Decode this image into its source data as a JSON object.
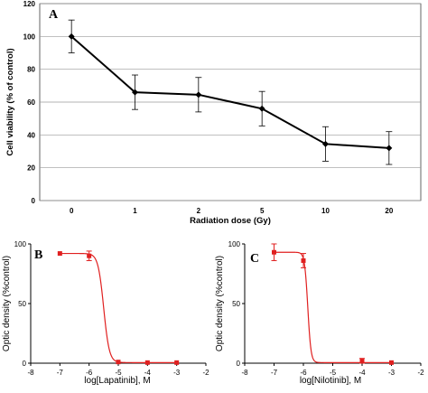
{
  "chart_data": [
    {
      "type": "line",
      "panel_label": "A",
      "xlabel": "Radiation dose (Gy)",
      "ylabel": "Cell viability (% of control)",
      "categories": [
        "0",
        "1",
        "2",
        "5",
        "10",
        "20"
      ],
      "values": [
        100,
        66,
        64.5,
        56,
        34.5,
        32
      ],
      "errors": [
        10,
        10.5,
        10.5,
        10.5,
        10.5,
        10
      ],
      "ylim": [
        0,
        120
      ],
      "yticks": [
        "0",
        "20",
        "40",
        "60",
        "80",
        "100",
        "120"
      ],
      "grid": true,
      "color": "#000000"
    },
    {
      "type": "scatter",
      "panel_label": "B",
      "xlabel": "log[Lapatinib], M",
      "ylabel": "Optic density (%control)",
      "x": [
        -7,
        -6,
        -5,
        -4,
        -3
      ],
      "y": [
        92,
        90,
        1,
        0.5,
        0.5
      ],
      "errors": [
        0,
        4,
        0,
        0,
        0
      ],
      "fit": {
        "top": 92,
        "bottom": 0.5,
        "log_ic50": -5.5,
        "hill": 4.5
      },
      "xlim": [
        -8,
        -2
      ],
      "ylim": [
        0,
        100
      ],
      "xticks": [
        "-8",
        "-7",
        "-6",
        "-5",
        "-4",
        "-3",
        "-2"
      ],
      "yticks": [
        "0",
        "50",
        "100"
      ],
      "color": "#e02020"
    },
    {
      "type": "scatter",
      "panel_label": "C",
      "xlabel": "log[Nilotinib], M",
      "ylabel": "Optic density (%control)",
      "x": [
        -7,
        -6,
        -4,
        -3
      ],
      "y": [
        93,
        86,
        2,
        0.5
      ],
      "errors": [
        7,
        6,
        2,
        0
      ],
      "fit": {
        "top": 93,
        "bottom": 0.5,
        "log_ic50": -5.85,
        "hill": 8
      },
      "xlim": [
        -8,
        -2
      ],
      "ylim": [
        0,
        100
      ],
      "xticks": [
        "-8",
        "-7",
        "-6",
        "-5",
        "-4",
        "-3",
        "-2"
      ],
      "yticks": [
        "0",
        "50",
        "100"
      ],
      "color": "#e02020"
    }
  ]
}
